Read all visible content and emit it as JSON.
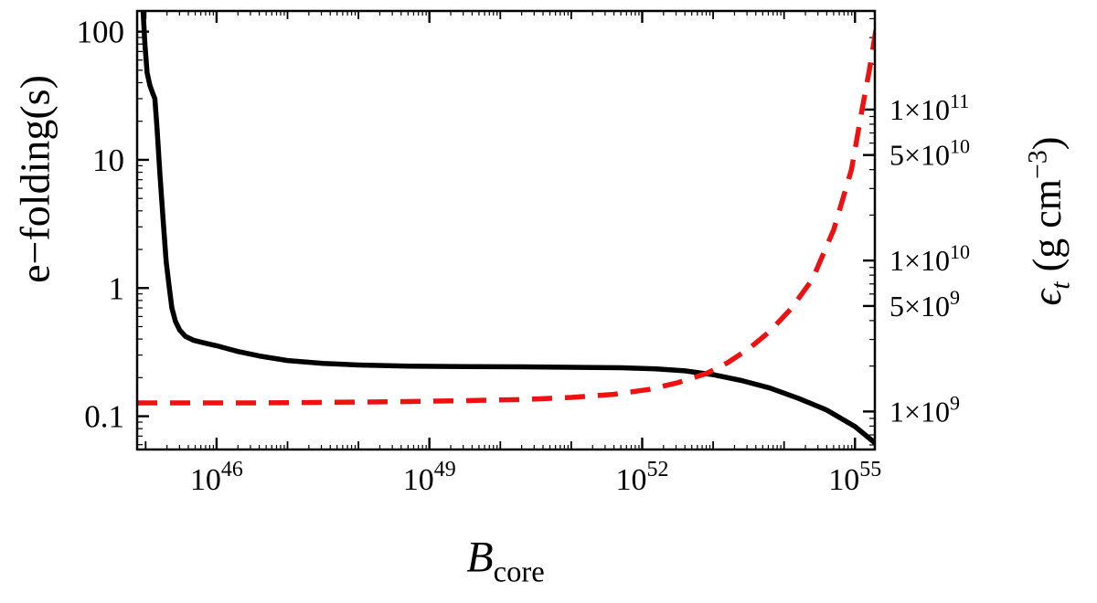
{
  "labels": {
    "x_base": "B",
    "x_sub": "core",
    "left": "e−folding(s)",
    "right_symbol": "ϵ",
    "right_sub": "t",
    "right_units_pre": " (g cm",
    "right_units_exp": "−3",
    "right_units_post": ")"
  },
  "chart_data": {
    "type": "line",
    "title": "",
    "xlabel": "B_core",
    "ylabel_left": "e−folding(s)",
    "ylabel_right": "ϵ_t (g cm^−3)",
    "x_scale": "log10",
    "y_scale_left": "log10",
    "y_scale_right": "log10",
    "grid": false,
    "legend": "none",
    "frame": true,
    "frame_color": "#000000",
    "background": "#ffffff",
    "xlim_log10": [
      44.88,
      55.28
    ],
    "ylim_left": [
      0.055,
      145
    ],
    "ylim_right": [
      560000000.0,
      450000000000.0
    ],
    "x_major_ticks_exponents": [
      46,
      49,
      52,
      55
    ],
    "left_axis_ticks": [
      0.1,
      1,
      10,
      100
    ],
    "right_axis_ticks": [
      {
        "mantissa": 1,
        "exponent": 9
      },
      {
        "mantissa": 5,
        "exponent": 9
      },
      {
        "mantissa": 1,
        "exponent": 10
      },
      {
        "mantissa": 5,
        "exponent": 10
      },
      {
        "mantissa": 1,
        "exponent": 11
      }
    ],
    "series": [
      {
        "name": "e-folding-time",
        "axis": "left",
        "color": "#000000",
        "style": "solid",
        "stroke_width": 5.5,
        "points_log10B_value": [
          [
            44.96,
            160
          ],
          [
            44.99,
            80
          ],
          [
            45.02,
            48
          ],
          [
            45.06,
            38
          ],
          [
            45.1,
            33
          ],
          [
            45.13,
            30
          ],
          [
            45.16,
            18
          ],
          [
            45.2,
            8
          ],
          [
            45.25,
            3.2
          ],
          [
            45.29,
            1.6
          ],
          [
            45.33,
            1.05
          ],
          [
            45.37,
            0.7
          ],
          [
            45.42,
            0.55
          ],
          [
            45.48,
            0.47
          ],
          [
            45.56,
            0.42
          ],
          [
            45.68,
            0.39
          ],
          [
            45.85,
            0.37
          ],
          [
            46.0,
            0.355
          ],
          [
            46.3,
            0.32
          ],
          [
            46.6,
            0.295
          ],
          [
            47.0,
            0.272
          ],
          [
            47.5,
            0.258
          ],
          [
            48.0,
            0.251
          ],
          [
            48.7,
            0.246
          ],
          [
            49.5,
            0.244
          ],
          [
            50.3,
            0.243
          ],
          [
            51.0,
            0.241
          ],
          [
            51.7,
            0.239
          ],
          [
            52.2,
            0.234
          ],
          [
            52.6,
            0.226
          ],
          [
            53.0,
            0.211
          ],
          [
            53.4,
            0.19
          ],
          [
            53.8,
            0.166
          ],
          [
            54.2,
            0.138
          ],
          [
            54.6,
            0.112
          ],
          [
            55.0,
            0.083
          ],
          [
            55.28,
            0.062
          ]
        ]
      },
      {
        "name": "epsilon-t",
        "axis": "right",
        "color": "#ee1111",
        "style": "dashed",
        "stroke_width": 5.5,
        "points_log10B_value": [
          [
            44.88,
            1140000000.0
          ],
          [
            45.5,
            1140000000.0
          ],
          [
            46.5,
            1140000000.0
          ],
          [
            47.5,
            1150000000.0
          ],
          [
            48.5,
            1160000000.0
          ],
          [
            49.5,
            1180000000.0
          ],
          [
            50.3,
            1200000000.0
          ],
          [
            51.0,
            1240000000.0
          ],
          [
            51.6,
            1300000000.0
          ],
          [
            52.1,
            1400000000.0
          ],
          [
            52.5,
            1550000000.0
          ],
          [
            52.9,
            1780000000.0
          ],
          [
            53.2,
            2100000000.0
          ],
          [
            53.5,
            2600000000.0
          ],
          [
            53.8,
            3400000000.0
          ],
          [
            54.1,
            4800000000.0
          ],
          [
            54.4,
            7500000000.0
          ],
          [
            54.7,
            16000000000.0
          ],
          [
            54.95,
            40000000000.0
          ],
          [
            55.1,
            100000000000.0
          ],
          [
            55.2,
            180000000000.0
          ],
          [
            55.3,
            350000000000.0
          ]
        ]
      }
    ]
  }
}
